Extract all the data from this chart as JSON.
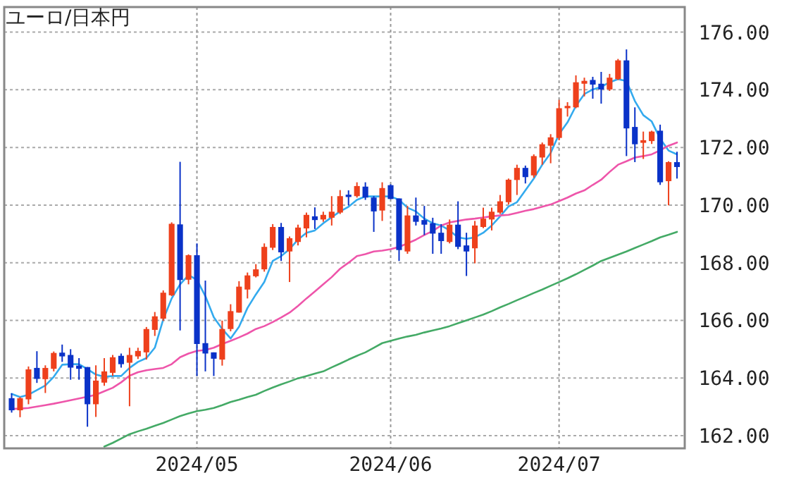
{
  "chart_data": {
    "type": "candlestick",
    "title": "ユーロ/日本円",
    "categories": [
      null,
      null,
      null,
      null,
      null,
      null,
      null,
      null,
      null,
      null,
      null,
      null,
      null,
      null,
      null,
      null,
      null,
      null,
      null,
      null,
      null,
      null,
      "2024/05",
      null,
      null,
      null,
      null,
      null,
      null,
      null,
      null,
      null,
      null,
      null,
      null,
      null,
      null,
      null,
      null,
      null,
      null,
      null,
      null,
      null,
      null,
      "2024/06",
      null,
      null,
      null,
      null,
      null,
      null,
      null,
      null,
      null,
      null,
      null,
      null,
      null,
      null,
      null,
      null,
      null,
      null,
      null,
      "2024/07",
      null,
      null,
      null,
      null,
      null,
      null,
      null,
      null,
      null,
      null,
      null,
      null,
      null,
      null
    ],
    "ohlc": [
      [
        163.3,
        163.47,
        162.8,
        162.88
      ],
      [
        162.88,
        163.34,
        162.64,
        163.3
      ],
      [
        163.26,
        164.4,
        163.09,
        164.3
      ],
      [
        164.35,
        164.93,
        163.83,
        163.97
      ],
      [
        163.96,
        164.44,
        163.48,
        164.35
      ],
      [
        164.32,
        164.92,
        164.23,
        164.87
      ],
      [
        164.88,
        165.16,
        164.56,
        164.75
      ],
      [
        164.8,
        165.0,
        163.94,
        164.36
      ],
      [
        164.43,
        164.69,
        163.94,
        164.32
      ],
      [
        164.38,
        164.38,
        162.31,
        163.09
      ],
      [
        163.09,
        164.44,
        162.65,
        163.91
      ],
      [
        163.84,
        164.69,
        163.73,
        164.23
      ],
      [
        164.18,
        164.8,
        164.07,
        164.72
      ],
      [
        164.77,
        164.85,
        164.36,
        164.48
      ],
      [
        164.53,
        165.05,
        163.02,
        164.8
      ],
      [
        164.75,
        165.05,
        164.66,
        164.94
      ],
      [
        164.89,
        165.77,
        164.64,
        165.7
      ],
      [
        165.67,
        166.29,
        165.46,
        166.14
      ],
      [
        166.06,
        167.04,
        165.98,
        166.96
      ],
      [
        166.87,
        169.4,
        166.84,
        169.35
      ],
      [
        169.33,
        171.5,
        165.65,
        167.4
      ],
      [
        167.41,
        168.29,
        167.25,
        168.26
      ],
      [
        168.26,
        168.67,
        164.07,
        165.18
      ],
      [
        165.21,
        167.38,
        164.23,
        164.85
      ],
      [
        164.89,
        164.89,
        164.07,
        164.67
      ],
      [
        164.64,
        165.99,
        164.43,
        165.7
      ],
      [
        165.7,
        166.56,
        165.62,
        166.32
      ],
      [
        166.27,
        167.36,
        166.27,
        167.17
      ],
      [
        167.07,
        167.66,
        166.76,
        167.56
      ],
      [
        167.53,
        167.95,
        167.49,
        167.77
      ],
      [
        167.77,
        168.67,
        167.69,
        168.55
      ],
      [
        168.52,
        169.34,
        168.44,
        169.24
      ],
      [
        169.24,
        169.38,
        168.06,
        168.36
      ],
      [
        168.39,
        168.91,
        167.33,
        168.85
      ],
      [
        168.72,
        169.32,
        168.6,
        169.22
      ],
      [
        169.19,
        169.74,
        168.88,
        169.66
      ],
      [
        169.61,
        169.92,
        169.17,
        169.48
      ],
      [
        169.5,
        169.77,
        169.42,
        169.66
      ],
      [
        169.56,
        170.31,
        169.29,
        169.77
      ],
      [
        169.74,
        170.52,
        169.69,
        170.31
      ],
      [
        170.36,
        170.51,
        169.99,
        170.28
      ],
      [
        170.31,
        170.79,
        170.26,
        170.66
      ],
      [
        170.64,
        170.79,
        170.18,
        170.26
      ],
      [
        170.26,
        170.31,
        169.07,
        169.78
      ],
      [
        169.81,
        170.79,
        169.45,
        170.59
      ],
      [
        170.69,
        170.72,
        170.21,
        170.21
      ],
      [
        170.23,
        170.23,
        168.06,
        168.44
      ],
      [
        168.39,
        169.97,
        168.31,
        169.64
      ],
      [
        169.64,
        170.26,
        169.29,
        169.42
      ],
      [
        169.48,
        169.97,
        168.96,
        169.32
      ],
      [
        169.37,
        169.56,
        168.31,
        169.01
      ],
      [
        169.04,
        169.34,
        168.31,
        168.75
      ],
      [
        168.72,
        169.5,
        168.67,
        169.32
      ],
      [
        169.32,
        170.13,
        168.47,
        168.55
      ],
      [
        168.6,
        169.04,
        167.54,
        168.39
      ],
      [
        168.5,
        169.45,
        167.98,
        169.29
      ],
      [
        169.24,
        169.91,
        169.2,
        169.53
      ],
      [
        169.5,
        169.91,
        169.12,
        169.77
      ],
      [
        169.74,
        170.35,
        169.69,
        170.13
      ],
      [
        170.1,
        170.92,
        170.02,
        170.88
      ],
      [
        170.87,
        171.4,
        170.35,
        171.29
      ],
      [
        171.29,
        171.37,
        170.75,
        170.97
      ],
      [
        171.03,
        171.76,
        170.95,
        171.7
      ],
      [
        171.65,
        172.17,
        171.4,
        172.11
      ],
      [
        172.06,
        172.46,
        171.45,
        172.35
      ],
      [
        172.33,
        173.65,
        172.25,
        173.36
      ],
      [
        173.36,
        173.57,
        173.07,
        173.44
      ],
      [
        173.39,
        174.5,
        173.36,
        174.26
      ],
      [
        174.21,
        174.42,
        173.77,
        174.31
      ],
      [
        174.34,
        174.45,
        173.69,
        174.18
      ],
      [
        174.21,
        174.62,
        173.52,
        174.01
      ],
      [
        174.01,
        174.55,
        173.96,
        174.42
      ],
      [
        174.37,
        175.07,
        174.34,
        175.02
      ],
      [
        175.02,
        175.4,
        171.7,
        172.66
      ],
      [
        172.71,
        173.39,
        171.49,
        172.11
      ],
      [
        172.16,
        172.55,
        171.6,
        172.25
      ],
      [
        172.22,
        172.58,
        172.12,
        172.55
      ],
      [
        172.58,
        172.79,
        170.7,
        170.79
      ],
      [
        170.83,
        171.52,
        169.99,
        171.49
      ],
      [
        171.49,
        171.85,
        170.92,
        171.32
      ]
    ],
    "colors": [
      "#0a32c8",
      "#ee401c",
      "#ee401c",
      "#0a32c8",
      "#ee401c",
      "#ee401c",
      "#0a32c8",
      "#0a32c8",
      "#0a32c8",
      "#0a32c8",
      "#ee401c",
      "#ee401c",
      "#ee401c",
      "#0a32c8",
      "#ee401c",
      "#ee401c",
      "#ee401c",
      "#ee401c",
      "#ee401c",
      "#ee401c",
      "#0a32c8",
      "#ee401c",
      "#0a32c8",
      "#0a32c8",
      "#0a32c8",
      "#ee401c",
      "#ee401c",
      "#ee401c",
      "#ee401c",
      "#ee401c",
      "#ee401c",
      "#ee401c",
      "#0a32c8",
      "#ee401c",
      "#ee401c",
      "#ee401c",
      "#0a32c8",
      "#ee401c",
      "#ee401c",
      "#ee401c",
      "#0a32c8",
      "#ee401c",
      "#0a32c8",
      "#0a32c8",
      "#ee401c",
      "#0a32c8",
      "#0a32c8",
      "#ee401c",
      "#0a32c8",
      "#0a32c8",
      "#0a32c8",
      "#0a32c8",
      "#ee401c",
      "#0a32c8",
      "#0a32c8",
      "#ee401c",
      "#ee401c",
      "#ee401c",
      "#ee401c",
      "#ee401c",
      "#ee401c",
      "#0a32c8",
      "#ee401c",
      "#ee401c",
      "#ee401c",
      "#ee401c",
      "#ee401c",
      "#ee401c",
      "#ee401c",
      "#0a32c8",
      "#0a32c8",
      "#ee401c",
      "#ee401c",
      "#0a32c8",
      "#0a32c8",
      "#ee401c",
      "#ee401c",
      "#0a32c8",
      "#ee401c",
      "#0a32c8"
    ],
    "series": [
      {
        "type": "line",
        "color": "#33aaee",
        "values": [
          163.45,
          163.34,
          163.42,
          163.58,
          163.74,
          164.04,
          164.46,
          164.48,
          164.48,
          164.31,
          164.12,
          164.04,
          164.07,
          164.07,
          164.35,
          164.56,
          164.69,
          165.05,
          166.03,
          166.76,
          167.25,
          167.57,
          167.41,
          166.84,
          166.11,
          165.7,
          165.37,
          165.78,
          166.43,
          166.9,
          167.33,
          168.06,
          168.23,
          168.47,
          168.8,
          169.04,
          169.12,
          169.37,
          169.58,
          169.78,
          169.94,
          170.18,
          170.3,
          170.3,
          170.3,
          170.3,
          170.18,
          169.91,
          169.78,
          169.53,
          169.37,
          169.29,
          169.12,
          168.88,
          168.83,
          168.88,
          169.04,
          169.29,
          169.61,
          169.95,
          170.1,
          170.51,
          170.92,
          171.4,
          171.81,
          172.46,
          172.87,
          173.44,
          173.85,
          174.01,
          174.1,
          174.26,
          174.37,
          174.3,
          173.61,
          173.12,
          172.9,
          172.3,
          171.89,
          171.76
        ]
      },
      {
        "type": "line",
        "color": "#ee55aa",
        "values": [
          162.93,
          162.94,
          162.96,
          163.01,
          163.06,
          163.11,
          163.17,
          163.23,
          163.29,
          163.35,
          163.42,
          163.54,
          163.66,
          163.85,
          164.08,
          164.2,
          164.27,
          164.31,
          164.35,
          164.48,
          164.72,
          164.85,
          164.94,
          164.97,
          165.05,
          165.18,
          165.29,
          165.41,
          165.54,
          165.7,
          165.8,
          165.94,
          166.1,
          166.27,
          166.5,
          166.76,
          167.0,
          167.25,
          167.5,
          167.79,
          168.0,
          168.23,
          168.3,
          168.39,
          168.42,
          168.47,
          168.55,
          168.67,
          168.8,
          168.96,
          169.1,
          169.29,
          169.4,
          169.45,
          169.5,
          169.53,
          169.57,
          169.61,
          169.64,
          169.66,
          169.73,
          169.8,
          169.86,
          169.94,
          170.02,
          170.14,
          170.26,
          170.4,
          170.51,
          170.7,
          170.88,
          171.15,
          171.4,
          171.52,
          171.65,
          171.7,
          171.76,
          171.9,
          172.06,
          172.17
        ]
      },
      {
        "type": "line",
        "color": "#44aa66",
        "values": [
          null,
          null,
          null,
          null,
          null,
          null,
          null,
          null,
          null,
          null,
          null,
          161.62,
          161.75,
          161.9,
          162.05,
          162.15,
          162.24,
          162.34,
          162.44,
          162.56,
          162.68,
          162.77,
          162.85,
          162.9,
          162.96,
          163.06,
          163.17,
          163.25,
          163.34,
          163.42,
          163.55,
          163.67,
          163.78,
          163.88,
          163.99,
          164.07,
          164.15,
          164.23,
          164.37,
          164.5,
          164.64,
          164.77,
          164.89,
          165.05,
          165.21,
          165.29,
          165.37,
          165.44,
          165.5,
          165.58,
          165.65,
          165.72,
          165.8,
          165.9,
          166.0,
          166.1,
          166.2,
          166.32,
          166.45,
          166.57,
          166.7,
          166.82,
          166.95,
          167.07,
          167.2,
          167.33,
          167.46,
          167.6,
          167.75,
          167.9,
          168.06,
          168.17,
          168.28,
          168.39,
          168.51,
          168.63,
          168.75,
          168.88,
          168.97,
          169.07
        ]
      }
    ],
    "ylim": [
      161.56,
      176.87
    ],
    "yticks": [
      {
        "value": 162,
        "label": "162.00"
      },
      {
        "value": 164,
        "label": "164.00"
      },
      {
        "value": 166,
        "label": "166.00"
      },
      {
        "value": 168,
        "label": "168.00"
      },
      {
        "value": 170,
        "label": "170.00"
      },
      {
        "value": 172,
        "label": "172.00"
      },
      {
        "value": 174,
        "label": "174.00"
      },
      {
        "value": 176,
        "label": "176.00"
      }
    ],
    "grid": true
  }
}
